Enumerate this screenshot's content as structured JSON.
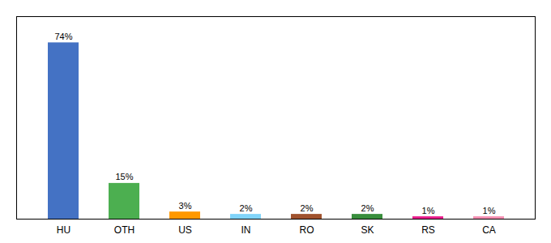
{
  "chart_data": {
    "type": "bar",
    "categories": [
      "HU",
      "OTH",
      "US",
      "IN",
      "RO",
      "SK",
      "RS",
      "CA"
    ],
    "values": [
      74,
      15,
      3,
      2,
      2,
      2,
      1,
      1
    ],
    "value_labels": [
      "74%",
      "15%",
      "3%",
      "2%",
      "2%",
      "2%",
      "1%",
      "1%"
    ],
    "colors": [
      "#4472C4",
      "#4CAF50",
      "#FF9800",
      "#81D4FA",
      "#A0522D",
      "#388E3C",
      "#E91E8C",
      "#F48FB1"
    ],
    "ylim": [
      0,
      85
    ],
    "grid": false,
    "data_labels": true,
    "tick_labels": "x"
  }
}
